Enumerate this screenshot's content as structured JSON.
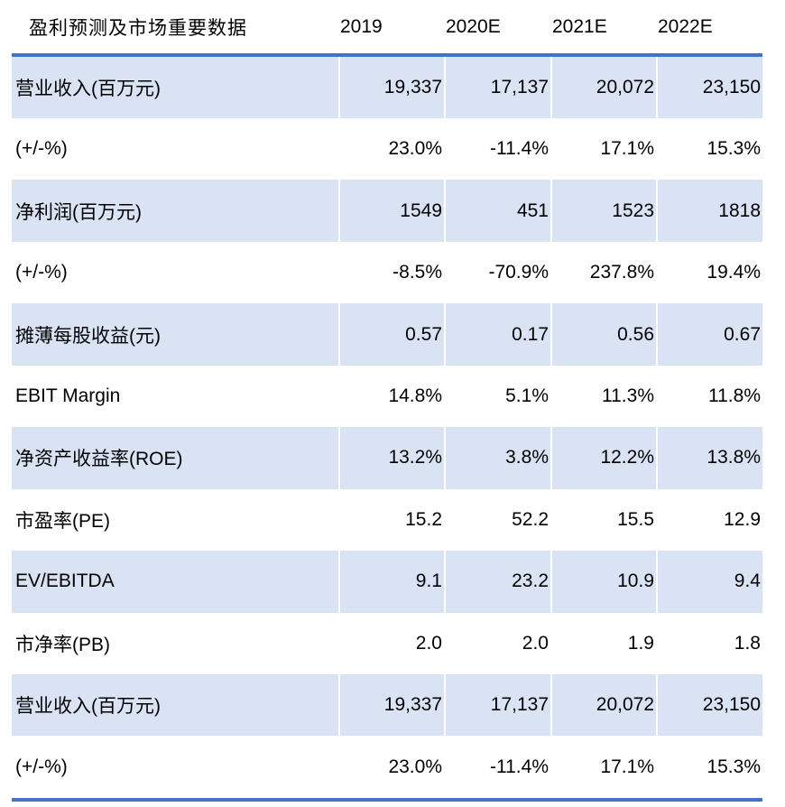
{
  "title": "盈利预测及市场重要数据",
  "columns": [
    "2019",
    "2020E",
    "2021E",
    "2022E"
  ],
  "rows": [
    {
      "label": "营业收入(百万元)",
      "values": [
        "19,337",
        "17,137",
        "20,072",
        "23,150"
      ]
    },
    {
      "label": "(+/-%)",
      "values": [
        "23.0%",
        "-11.4%",
        "17.1%",
        "15.3%"
      ]
    },
    {
      "label": "净利润(百万元)",
      "values": [
        "1549",
        "451",
        "1523",
        "1818"
      ]
    },
    {
      "label": "(+/-%)",
      "values": [
        "-8.5%",
        "-70.9%",
        "237.8%",
        "19.4%"
      ]
    },
    {
      "label": "摊薄每股收益(元)",
      "values": [
        "0.57",
        "0.17",
        "0.56",
        "0.67"
      ]
    },
    {
      "label": "EBIT Margin",
      "values": [
        "14.8%",
        "5.1%",
        "11.3%",
        "11.8%"
      ]
    },
    {
      "label": "净资产收益率(ROE)",
      "values": [
        "13.2%",
        "3.8%",
        "12.2%",
        "13.8%"
      ]
    },
    {
      "label": "市盈率(PE)",
      "values": [
        "15.2",
        "52.2",
        "15.5",
        "12.9"
      ]
    },
    {
      "label": "EV/EBITDA",
      "values": [
        "9.1",
        "23.2",
        "10.9",
        "9.4"
      ]
    },
    {
      "label": "市净率(PB)",
      "values": [
        "2.0",
        "2.0",
        "1.9",
        "1.8"
      ]
    },
    {
      "label": "营业收入(百万元)",
      "values": [
        "19,337",
        "17,137",
        "20,072",
        "23,150"
      ]
    },
    {
      "label": "(+/-%)",
      "values": [
        "23.0%",
        "-11.4%",
        "17.1%",
        "15.3%"
      ]
    }
  ],
  "colors": {
    "stripe": "#dae3f3",
    "rule": "#4472c4",
    "text": "#000000",
    "background": "#ffffff"
  }
}
